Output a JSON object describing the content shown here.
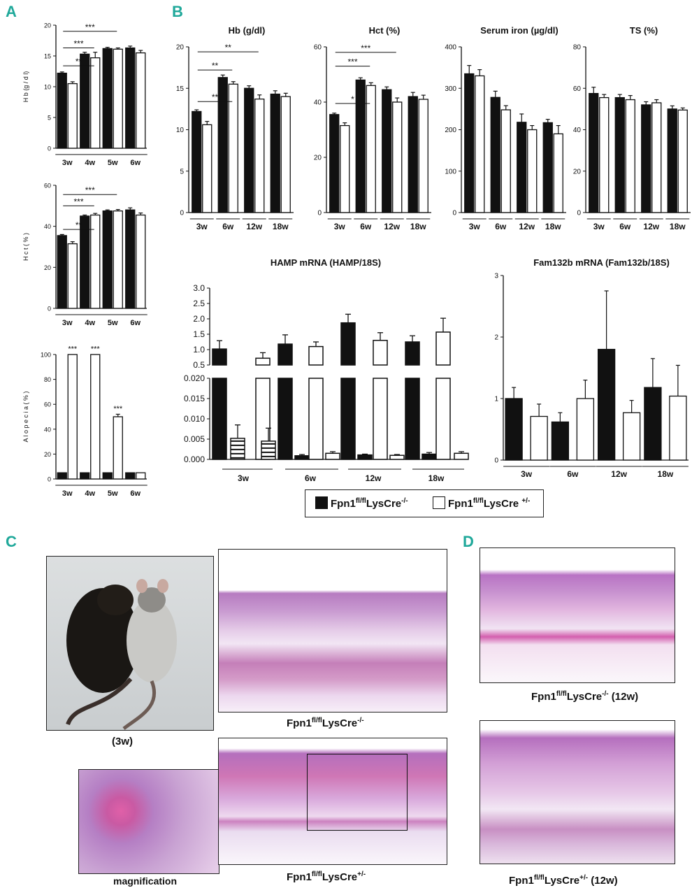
{
  "panel_letters": {
    "a": "A",
    "b": "B",
    "c": "C",
    "d": "D"
  },
  "colors": {
    "fl_minus": "#111111",
    "fl_plus": "#ffffff",
    "letter": "#1fa89a"
  },
  "legend": {
    "minus_base": "Fpn1",
    "minus_sup1": "fl/fl",
    "minus_mid": "LysCre",
    "minus_sup2": "-/-",
    "plus_base": "Fpn1",
    "plus_sup1": "fl/fl",
    "plus_mid": "LysCre ",
    "plus_sup2": "+/-"
  },
  "captions": {
    "c_photo": "(3w)",
    "c_minus_base": "Fpn1",
    "c_minus_sup1": "fl/fl",
    "c_minus_mid": "LysCre",
    "c_minus_sup2": "-/-",
    "c_mag": "magnification",
    "c_plus_base": "Fpn1",
    "c_plus_sup1": "fl/fl",
    "c_plus_mid": "LysCre",
    "c_plus_sup2": "+/-",
    "d_minus_base": "Fpn1",
    "d_minus_sup1": "fl/fl",
    "d_minus_mid": "LysCre",
    "d_minus_sup2": "-/-",
    "d_minus_tail": " (12w)",
    "d_plus_base": "Fpn1",
    "d_plus_sup1": "fl/fl",
    "d_plus_mid": "LysCre",
    "d_plus_sup2": "+/-",
    "d_plus_tail": " (12w)"
  },
  "chart_data": [
    {
      "id": "A1",
      "type": "bar",
      "title": "",
      "ylabel": "H b  (g / d l)",
      "categories": [
        "3w",
        "4w",
        "5w",
        "6w"
      ],
      "ylim": [
        0,
        20
      ],
      "yticks": [
        0,
        5,
        10,
        15,
        20
      ],
      "series": [
        {
          "color": "#111111",
          "values": [
            12.2,
            15.3,
            16.2,
            16.3
          ],
          "errors": [
            0.2,
            0.3,
            0.2,
            0.3
          ]
        },
        {
          "color": "#ffffff",
          "values": [
            10.5,
            14.7,
            16.1,
            15.5
          ],
          "errors": [
            0.3,
            0.9,
            0.2,
            0.4
          ]
        }
      ],
      "sig": [
        {
          "label": "**",
          "from": 0,
          "to": 1,
          "y": 13.4
        },
        {
          "label": "***",
          "from": 0,
          "to": 1,
          "y": 16.3
        },
        {
          "label": "***",
          "from": 0,
          "to": 2,
          "y": 19.0
        }
      ]
    },
    {
      "id": "A2",
      "type": "bar",
      "title": "",
      "ylabel": "H c t  ( % )",
      "categories": [
        "3w",
        "4w",
        "5w",
        "6w"
      ],
      "ylim": [
        0,
        60
      ],
      "yticks": [
        0,
        20,
        40,
        60
      ],
      "series": [
        {
          "color": "#111111",
          "values": [
            35.5,
            45,
            47.5,
            48
          ],
          "errors": [
            0.5,
            0.5,
            0.5,
            1
          ]
        },
        {
          "color": "#ffffff",
          "values": [
            31.5,
            45.5,
            47.5,
            45.5
          ],
          "errors": [
            1,
            0.8,
            0.7,
            1
          ]
        }
      ],
      "sig": [
        {
          "label": "**",
          "from": 0,
          "to": 1,
          "y": 38.5
        },
        {
          "label": "***",
          "from": 0,
          "to": 1,
          "y": 50
        },
        {
          "label": "***",
          "from": 0,
          "to": 2,
          "y": 55.5
        }
      ]
    },
    {
      "id": "A3",
      "type": "bar",
      "title": "",
      "ylabel": "A l o p e c i a  ( % )",
      "categories": [
        "3w",
        "4w",
        "5w",
        "6w"
      ],
      "ylim": [
        0,
        100
      ],
      "yticks": [
        0,
        20,
        40,
        60,
        80,
        100
      ],
      "series": [
        {
          "color": "#111111",
          "values": [
            5,
            5,
            5,
            5
          ],
          "errors": [
            0,
            0,
            0,
            0
          ]
        },
        {
          "color": "#ffffff",
          "values": [
            100,
            100,
            50,
            5
          ],
          "errors": [
            0,
            0,
            2,
            0
          ]
        }
      ],
      "stars": [
        {
          "label": "***",
          "cat": 0,
          "y": 102
        },
        {
          "label": "***",
          "cat": 1,
          "y": 102
        },
        {
          "label": "***",
          "cat": 2,
          "y": 54
        }
      ]
    },
    {
      "id": "B1",
      "type": "bar",
      "title": "Hb (g/dl)",
      "ylabel": "",
      "categories": [
        "3w",
        "6w",
        "12w",
        "18w"
      ],
      "ylim": [
        0,
        20
      ],
      "yticks": [
        0,
        5,
        10,
        15,
        20
      ],
      "series": [
        {
          "color": "#111111",
          "values": [
            12.2,
            16.3,
            15.0,
            14.3
          ],
          "errors": [
            0.2,
            0.3,
            0.3,
            0.4
          ]
        },
        {
          "color": "#ffffff",
          "values": [
            10.6,
            15.5,
            13.7,
            14.0
          ],
          "errors": [
            0.4,
            0.3,
            0.5,
            0.4
          ]
        }
      ],
      "sig": [
        {
          "label": "**",
          "from": 0,
          "to": 1,
          "y": 13.4
        },
        {
          "label": "**",
          "from": 0,
          "to": 1,
          "y": 17.2
        },
        {
          "label": "**",
          "from": 0,
          "to": 2,
          "y": 19.4
        }
      ]
    },
    {
      "id": "B2",
      "type": "bar",
      "title": "Hct (%)",
      "ylabel": "",
      "categories": [
        "3w",
        "6w",
        "12w",
        "18w"
      ],
      "ylim": [
        0,
        60
      ],
      "yticks": [
        0,
        20,
        40,
        60
      ],
      "series": [
        {
          "color": "#111111",
          "values": [
            35.5,
            48,
            44.5,
            42
          ],
          "errors": [
            0.5,
            0.8,
            1,
            1.5
          ]
        },
        {
          "color": "#ffffff",
          "values": [
            31.5,
            46,
            40,
            41
          ],
          "errors": [
            1,
            1,
            1.5,
            1.5
          ]
        }
      ],
      "sig": [
        {
          "label": "*",
          "from": 0,
          "to": 1,
          "y": 39.5
        },
        {
          "label": "***",
          "from": 0,
          "to": 1,
          "y": 53
        },
        {
          "label": "***",
          "from": 0,
          "to": 2,
          "y": 58
        }
      ]
    },
    {
      "id": "B3",
      "type": "bar",
      "title": "Serum iron (µg/dl)",
      "ylabel": "",
      "categories": [
        "3w",
        "6w",
        "12w",
        "18w"
      ],
      "ylim": [
        0,
        400
      ],
      "yticks": [
        0,
        100,
        200,
        300,
        400
      ],
      "series": [
        {
          "color": "#111111",
          "values": [
            335,
            278,
            218,
            217
          ],
          "errors": [
            20,
            15,
            20,
            8
          ]
        },
        {
          "color": "#ffffff",
          "values": [
            330,
            248,
            200,
            190
          ],
          "errors": [
            15,
            10,
            10,
            20
          ]
        }
      ]
    },
    {
      "id": "B4",
      "type": "bar",
      "title": "TS (%)",
      "ylabel": "",
      "categories": [
        "3w",
        "6w",
        "12w",
        "18w"
      ],
      "ylim": [
        0,
        80
      ],
      "yticks": [
        0,
        20,
        40,
        60,
        80
      ],
      "series": [
        {
          "color": "#111111",
          "values": [
            57.5,
            55.5,
            52,
            50
          ],
          "errors": [
            3,
            1.5,
            1.5,
            1.5
          ]
        },
        {
          "color": "#ffffff",
          "values": [
            55.5,
            54.5,
            53,
            49.5
          ],
          "errors": [
            1.5,
            2,
            1.5,
            1
          ]
        }
      ]
    },
    {
      "id": "B5",
      "type": "bar",
      "title": "HAMP mRNA (HAMP/18S)",
      "ylabel": "",
      "categories": [
        "3w",
        "6w",
        "12w",
        "18w"
      ],
      "upper_yticks": [
        "0.5",
        "1.0",
        "1.5",
        "2.0",
        "2.5",
        "3.0"
      ],
      "lower_yticks": [
        "0.000",
        "0.005",
        "0.010",
        "0.015",
        "0.020"
      ],
      "upper_range": [
        0.5,
        3.0
      ],
      "lower_range": [
        0,
        0.02
      ],
      "bars": [
        {
          "group": "fl/fl LysCre-/-",
          "cat": "3w",
          "value": 1.02,
          "error": 0.27
        },
        {
          "group": "fl/fl LysCre-/-",
          "cat": "3w",
          "value": 0.0052,
          "error": 0.0033,
          "pattern": "striped"
        },
        {
          "group": "fl/fl LysCre+/-",
          "cat": "3w",
          "value": 0.72,
          "error": 0.18
        },
        {
          "group": "fl/fl LysCre+/-",
          "cat": "3w",
          "value": 0.0045,
          "error": 0.0032,
          "pattern": "striped"
        },
        {
          "group": "fl/fl LysCre-/-",
          "cat": "6w",
          "value": 1.18,
          "error": 0.3
        },
        {
          "group": "fl/fl LysCre-/-",
          "cat": "6w",
          "value": 0.0009,
          "error": 0.0003
        },
        {
          "group": "fl/fl LysCre+/-",
          "cat": "6w",
          "value": 1.1,
          "error": 0.15
        },
        {
          "group": "fl/fl LysCre+/-",
          "cat": "6w",
          "value": 0.0015,
          "error": 0.0004
        },
        {
          "group": "fl/fl LysCre-/-",
          "cat": "12w",
          "value": 1.87,
          "error": 0.28
        },
        {
          "group": "fl/fl LysCre-/-",
          "cat": "12w",
          "value": 0.0011,
          "error": 0.0002
        },
        {
          "group": "fl/fl LysCre+/-",
          "cat": "12w",
          "value": 1.3,
          "error": 0.25
        },
        {
          "group": "fl/fl LysCre+/-",
          "cat": "12w",
          "value": 0.001,
          "error": 0.0002
        },
        {
          "group": "fl/fl LysCre-/-",
          "cat": "18w",
          "value": 1.25,
          "error": 0.2
        },
        {
          "group": "fl/fl LysCre-/-",
          "cat": "18w",
          "value": 0.0013,
          "error": 0.0004
        },
        {
          "group": "fl/fl LysCre+/-",
          "cat": "18w",
          "value": 1.57,
          "error": 0.45
        },
        {
          "group": "fl/fl LysCre+/-",
          "cat": "18w",
          "value": 0.0015,
          "error": 0.0004
        }
      ]
    },
    {
      "id": "B6",
      "type": "bar",
      "title": "Fam132b mRNA (Fam132b/18S)",
      "ylabel": "",
      "categories": [
        "3w",
        "6w",
        "12w",
        "18w"
      ],
      "ylim": [
        0,
        3
      ],
      "yticks": [
        0,
        1,
        2,
        3
      ],
      "series": [
        {
          "color": "#111111",
          "values": [
            1.0,
            0.62,
            1.8,
            1.18
          ],
          "errors": [
            0.18,
            0.15,
            0.95,
            0.47
          ]
        },
        {
          "color": "#ffffff",
          "values": [
            0.71,
            1.0,
            0.77,
            1.04
          ],
          "errors": [
            0.2,
            0.3,
            0.2,
            0.5
          ]
        }
      ]
    }
  ]
}
